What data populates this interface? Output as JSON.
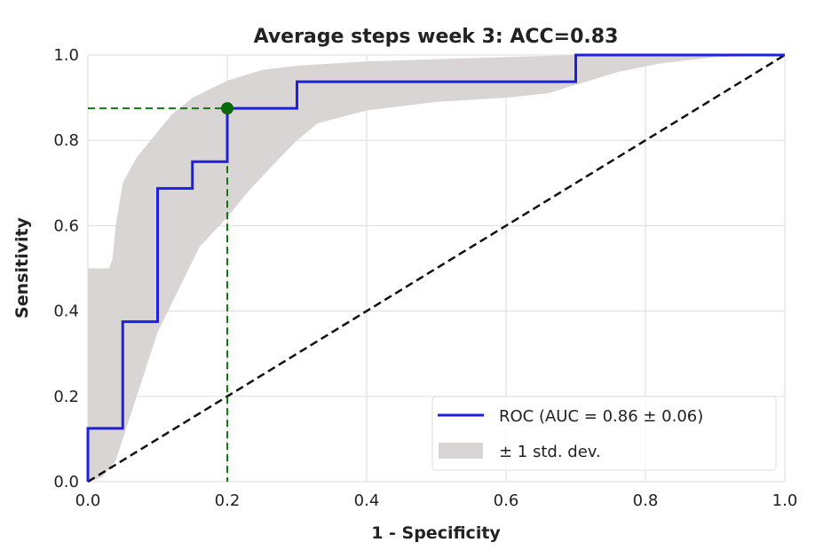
{
  "chart_data": {
    "type": "line",
    "title": "Average steps week 3: ACC=0.83",
    "xlabel": "1 - Specificity",
    "ylabel": "Sensitivity",
    "xlim": [
      0,
      1
    ],
    "ylim": [
      0,
      1
    ],
    "xticks": [
      "0.0",
      "0.2",
      "0.4",
      "0.6",
      "0.8",
      "1.0"
    ],
    "yticks": [
      "0.0",
      "0.2",
      "0.4",
      "0.6",
      "0.8",
      "1.0"
    ],
    "grid": true,
    "legend_position": "bottom-right",
    "series": [
      {
        "name": "ROC (AUC = 0.86 ± 0.06)",
        "color": "#1f1fe0",
        "step": true,
        "x": [
          0,
          0,
          0.05,
          0.05,
          0.1,
          0.1,
          0.15,
          0.15,
          0.2,
          0.2,
          0.3,
          0.3,
          0.7,
          0.7,
          1.0
        ],
        "y": [
          0,
          0.125,
          0.125,
          0.375,
          0.375,
          0.6875,
          0.6875,
          0.75,
          0.75,
          0.875,
          0.875,
          0.9375,
          0.9375,
          1.0,
          1.0
        ]
      }
    ],
    "band": {
      "name": "± 1 std. dev.",
      "color": "#d9d5d5",
      "upper": {
        "x": [
          0,
          0.03,
          0.035,
          0.04,
          0.05,
          0.07,
          0.09,
          0.12,
          0.15,
          0.2,
          0.25,
          0.3,
          0.4,
          0.5,
          0.6,
          0.7,
          1.0
        ],
        "y": [
          0.5,
          0.5,
          0.52,
          0.6,
          0.7,
          0.76,
          0.8,
          0.86,
          0.9,
          0.94,
          0.965,
          0.975,
          0.985,
          0.99,
          0.995,
          1.0,
          1.0
        ]
      },
      "lower": {
        "x": [
          0,
          0.02,
          0.04,
          0.06,
          0.08,
          0.1,
          0.13,
          0.16,
          0.2,
          0.23,
          0.27,
          0.3,
          0.33,
          0.4,
          0.5,
          0.6,
          0.66,
          0.7,
          0.76,
          0.82,
          0.9,
          1.0
        ],
        "y": [
          0,
          0.01,
          0.05,
          0.15,
          0.25,
          0.35,
          0.45,
          0.55,
          0.62,
          0.68,
          0.75,
          0.8,
          0.84,
          0.87,
          0.89,
          0.9,
          0.91,
          0.93,
          0.96,
          0.98,
          0.995,
          1.0
        ]
      }
    },
    "chance_line": {
      "x": [
        0,
        1
      ],
      "y": [
        0,
        1
      ],
      "color": "#111111",
      "style": "dashed"
    },
    "operating_point": {
      "x": 0.2,
      "y": 0.875,
      "color": "#117711",
      "guides": "dashed"
    }
  }
}
